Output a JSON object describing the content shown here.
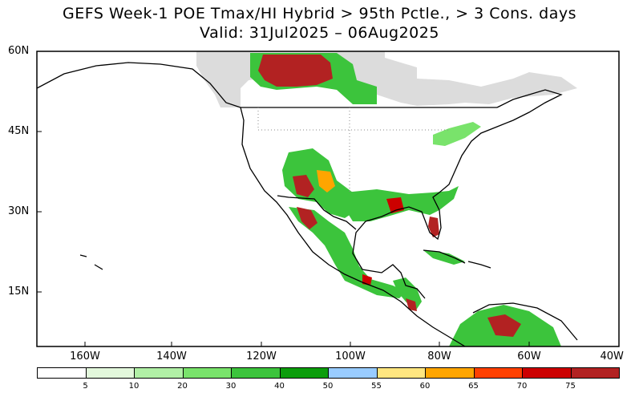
{
  "title": {
    "line1": "GEFS Week-1 POE Tmax/HI Hybrid > 95th Pctle., > 3 Cons. days",
    "line2": "Valid: 31Jul2025 – 06Aug2025"
  },
  "lat_labels": [
    "60N",
    "45N",
    "30N",
    "15N"
  ],
  "lon_labels": [
    "160W",
    "140W",
    "120W",
    "100W",
    "80W",
    "60W",
    "40W"
  ],
  "colorbar": {
    "colors": [
      "#ffffff",
      "#e3f8dc",
      "#b1f0a6",
      "#79e36b",
      "#3cc43c",
      "#0c9d0c",
      "#99ccff",
      "#ffe680",
      "#ffa500",
      "#ff4000",
      "#cc0000",
      "#b22222"
    ],
    "labels": [
      "5",
      "10",
      "20",
      "30",
      "40",
      "50",
      "55",
      "60",
      "65",
      "70",
      "75"
    ]
  }
}
